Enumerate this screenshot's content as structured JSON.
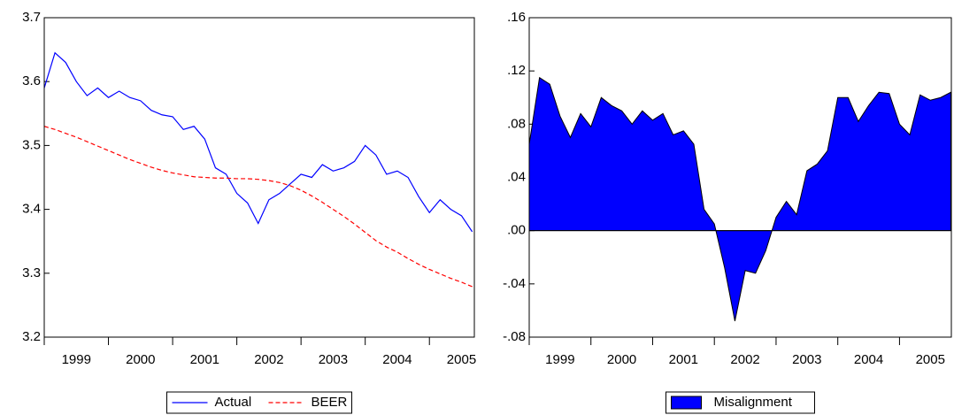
{
  "chart_data": [
    {
      "type": "line",
      "x": [
        1999.0,
        1999.167,
        1999.333,
        1999.5,
        1999.667,
        1999.833,
        2000.0,
        2000.167,
        2000.333,
        2000.5,
        2000.667,
        2000.833,
        2001.0,
        2001.167,
        2001.333,
        2001.5,
        2001.667,
        2001.833,
        2002.0,
        2002.167,
        2002.333,
        2002.5,
        2002.667,
        2002.833,
        2003.0,
        2003.167,
        2003.333,
        2003.5,
        2003.667,
        2003.833,
        2004.0,
        2004.167,
        2004.333,
        2004.5,
        2004.667,
        2004.833,
        2005.0,
        2005.167,
        2005.333,
        2005.5,
        2005.667
      ],
      "series": [
        {
          "name": "Actual",
          "color": "#0000ff",
          "linestyle": "solid",
          "values": [
            3.59,
            3.645,
            3.63,
            3.6,
            3.578,
            3.59,
            3.575,
            3.585,
            3.575,
            3.57,
            3.555,
            3.548,
            3.545,
            3.525,
            3.53,
            3.51,
            3.465,
            3.455,
            3.425,
            3.41,
            3.378,
            3.415,
            3.425,
            3.44,
            3.455,
            3.45,
            3.47,
            3.46,
            3.465,
            3.475,
            3.5,
            3.485,
            3.455,
            3.46,
            3.45,
            3.42,
            3.395,
            3.415,
            3.4,
            3.39,
            3.365
          ]
        },
        {
          "name": "BEER",
          "color": "#ff0000",
          "linestyle": "dashed",
          "values": [
            3.53,
            3.525,
            3.519,
            3.513,
            3.506,
            3.499,
            3.492,
            3.485,
            3.478,
            3.472,
            3.466,
            3.461,
            3.457,
            3.454,
            3.451,
            3.45,
            3.449,
            3.449,
            3.448,
            3.448,
            3.447,
            3.445,
            3.442,
            3.437,
            3.43,
            3.421,
            3.411,
            3.4,
            3.389,
            3.377,
            3.364,
            3.351,
            3.341,
            3.333,
            3.323,
            3.314,
            3.306,
            3.299,
            3.292,
            3.286,
            3.279
          ]
        }
      ],
      "xlim": [
        1999,
        2005.7
      ],
      "xticks": [
        1999,
        2000,
        2001,
        2002,
        2003,
        2004,
        2005
      ],
      "ylim": [
        3.2,
        3.7
      ],
      "yticks": [
        3.2,
        3.3,
        3.4,
        3.5,
        3.6,
        3.7
      ],
      "legend": "bottom"
    },
    {
      "type": "area",
      "x": [
        1999.0,
        1999.167,
        1999.333,
        1999.5,
        1999.667,
        1999.833,
        2000.0,
        2000.167,
        2000.333,
        2000.5,
        2000.667,
        2000.833,
        2001.0,
        2001.167,
        2001.333,
        2001.5,
        2001.667,
        2001.833,
        2002.0,
        2002.167,
        2002.333,
        2002.5,
        2002.667,
        2002.833,
        2003.0,
        2003.167,
        2003.333,
        2003.5,
        2003.667,
        2003.833,
        2004.0,
        2004.167,
        2004.333,
        2004.5,
        2004.667,
        2004.833,
        2005.0,
        2005.167,
        2005.333,
        2005.5,
        2005.667,
        2005.833
      ],
      "series": [
        {
          "name": "Misalignment",
          "color": "#0000ff",
          "values": [
            0.065,
            0.115,
            0.11,
            0.086,
            0.07,
            0.088,
            0.078,
            0.1,
            0.094,
            0.09,
            0.08,
            0.09,
            0.083,
            0.088,
            0.072,
            0.075,
            0.065,
            0.016,
            0.005,
            -0.028,
            -0.068,
            -0.03,
            -0.032,
            -0.015,
            0.01,
            0.022,
            0.012,
            0.045,
            0.05,
            0.06,
            0.1,
            0.1,
            0.082,
            0.094,
            0.104,
            0.103,
            0.08,
            0.072,
            0.102,
            0.098,
            0.1,
            0.104
          ]
        }
      ],
      "xlim": [
        1999,
        2005.84
      ],
      "xticks": [
        1999,
        2000,
        2001,
        2002,
        2003,
        2004,
        2005
      ],
      "ylim": [
        -0.08,
        0.16
      ],
      "yticks": [
        {
          "value": -0.08,
          "label": "-.08"
        },
        {
          "value": -0.04,
          "label": "-.04"
        },
        {
          "value": 0,
          "label": ".00"
        },
        {
          "value": 0.04,
          "label": ".04"
        },
        {
          "value": 0.08,
          "label": ".08"
        },
        {
          "value": 0.12,
          "label": ".12"
        },
        {
          "value": 0.16,
          "label": ".16"
        }
      ],
      "legend": "bottom"
    }
  ]
}
